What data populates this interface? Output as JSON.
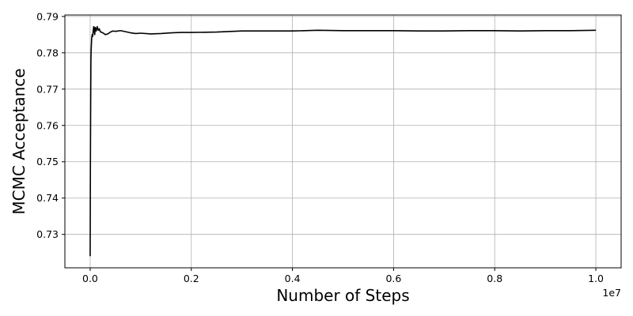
{
  "chart_data": {
    "type": "line",
    "title": "",
    "xlabel": "Number of Steps",
    "ylabel": "MCMC Acceptance",
    "x_offset_label": "1e7",
    "xlim": [
      -0.05,
      1.05
    ],
    "ylim": [
      0.7208,
      0.7904
    ],
    "x_ticks": [
      0.0,
      0.2,
      0.4,
      0.6,
      0.8,
      1.0
    ],
    "x_tick_labels": [
      "0.0",
      "0.2",
      "0.4",
      "0.6",
      "0.8",
      "1.0"
    ],
    "y_ticks": [
      0.73,
      0.74,
      0.75,
      0.76,
      0.77,
      0.78,
      0.79
    ],
    "y_tick_labels": [
      "0.73",
      "0.74",
      "0.75",
      "0.76",
      "0.77",
      "0.78",
      "0.79"
    ],
    "grid": true,
    "line_color": "#000000",
    "grid_color": "#b0b0b0",
    "series": [
      {
        "x": [
          0.0,
          0.0005,
          0.001,
          0.0015,
          0.002,
          0.003,
          0.004,
          0.005,
          0.006,
          0.007,
          0.008,
          0.009,
          0.01,
          0.012,
          0.014,
          0.016,
          0.018,
          0.02,
          0.025,
          0.03,
          0.035,
          0.04,
          0.045,
          0.05,
          0.06,
          0.07,
          0.08,
          0.09,
          0.1,
          0.12,
          0.14,
          0.16,
          0.18,
          0.2,
          0.25,
          0.3,
          0.35,
          0.4,
          0.45,
          0.5,
          0.55,
          0.6,
          0.65,
          0.7,
          0.75,
          0.8,
          0.85,
          0.9,
          0.95,
          1.0
        ],
        "y": [
          0.724,
          0.75,
          0.766,
          0.778,
          0.781,
          0.784,
          0.785,
          0.7845,
          0.786,
          0.7872,
          0.7865,
          0.785,
          0.787,
          0.786,
          0.7872,
          0.7862,
          0.7866,
          0.7858,
          0.7855,
          0.785,
          0.7852,
          0.7857,
          0.786,
          0.7859,
          0.7861,
          0.7858,
          0.7855,
          0.7853,
          0.7854,
          0.7852,
          0.7853,
          0.7855,
          0.7856,
          0.7856,
          0.7857,
          0.786,
          0.786,
          0.786,
          0.7862,
          0.7861,
          0.7861,
          0.7861,
          0.786,
          0.786,
          0.7861,
          0.7861,
          0.786,
          0.7861,
          0.7861,
          0.7862
        ]
      }
    ]
  }
}
